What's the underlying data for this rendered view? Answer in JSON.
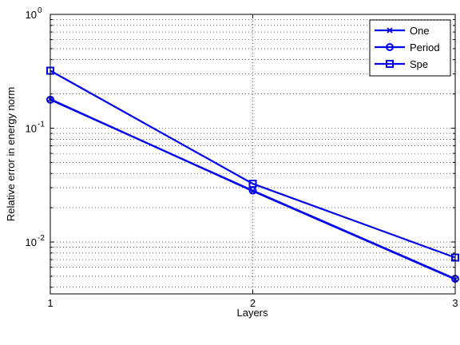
{
  "chart_data": {
    "type": "line",
    "title": "",
    "xlabel": "Layers",
    "ylabel": "Relative error in energy norm",
    "x": [
      1,
      2,
      3
    ],
    "xlim": [
      1,
      3
    ],
    "ylim": [
      0.0035,
      1
    ],
    "yscale": "log",
    "grid": true,
    "legend_position": "top-right",
    "x_ticks": [
      {
        "value": 1,
        "label": "1"
      },
      {
        "value": 2,
        "label": "2"
      },
      {
        "value": 3,
        "label": "3"
      }
    ],
    "y_ticks": [
      {
        "value": 0.01,
        "base": "10",
        "exp": "-2"
      },
      {
        "value": 0.1,
        "base": "10",
        "exp": "-1"
      },
      {
        "value": 1,
        "base": "10",
        "exp": "0"
      }
    ],
    "line_color": "#0000ee",
    "series": [
      {
        "name": "One",
        "marker": "x",
        "values": [
          0.18,
          0.028,
          0.0047
        ]
      },
      {
        "name": "Period",
        "marker": "circle",
        "values": [
          0.178,
          0.0283,
          0.00475
        ]
      },
      {
        "name": "Spe",
        "marker": "square",
        "values": [
          0.32,
          0.0325,
          0.0073
        ]
      }
    ]
  }
}
